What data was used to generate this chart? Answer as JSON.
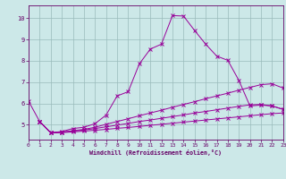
{
  "xlabel": "Windchill (Refroidissement éolien,°C)",
  "bg_color": "#cce8e8",
  "line_color": "#990099",
  "xlim": [
    0,
    23
  ],
  "ylim": [
    4.3,
    10.6
  ],
  "yticks": [
    5,
    6,
    7,
    8,
    9,
    10
  ],
  "xticks": [
    0,
    1,
    2,
    3,
    4,
    5,
    6,
    7,
    8,
    9,
    10,
    11,
    12,
    13,
    14,
    15,
    16,
    17,
    18,
    19,
    20,
    21,
    22,
    23
  ],
  "lines": [
    {
      "x": [
        0,
        1,
        2,
        3,
        4,
        5,
        6,
        7,
        8,
        9,
        10,
        11,
        12,
        13,
        14,
        15,
        16,
        17,
        18,
        19,
        20,
        21,
        22,
        23
      ],
      "y": [
        6.1,
        5.15,
        4.62,
        4.68,
        4.82,
        4.88,
        5.05,
        5.45,
        6.35,
        6.55,
        7.85,
        8.55,
        8.78,
        10.12,
        10.1,
        9.42,
        8.78,
        8.22,
        8.02,
        7.08,
        5.88,
        5.92,
        5.88,
        5.72
      ]
    },
    {
      "x": [
        1,
        2,
        3,
        4,
        5,
        6,
        7,
        8,
        9,
        10,
        11,
        12,
        13,
        14,
        15,
        16,
        17,
        18,
        19,
        20,
        21,
        22,
        23
      ],
      "y": [
        5.15,
        4.62,
        4.65,
        4.72,
        4.78,
        4.88,
        5.02,
        5.15,
        5.28,
        5.42,
        5.55,
        5.68,
        5.82,
        5.95,
        6.08,
        6.22,
        6.35,
        6.48,
        6.62,
        6.75,
        6.88,
        6.92,
        6.72
      ]
    },
    {
      "x": [
        1,
        2,
        3,
        4,
        5,
        6,
        7,
        8,
        9,
        10,
        11,
        12,
        13,
        14,
        15,
        16,
        17,
        18,
        19,
        20,
        21,
        22,
        23
      ],
      "y": [
        5.15,
        4.62,
        4.65,
        4.7,
        4.75,
        4.82,
        4.9,
        4.98,
        5.06,
        5.15,
        5.22,
        5.3,
        5.38,
        5.46,
        5.55,
        5.62,
        5.7,
        5.78,
        5.86,
        5.93,
        5.95,
        5.88,
        5.72
      ]
    },
    {
      "x": [
        1,
        2,
        3,
        4,
        5,
        6,
        7,
        8,
        9,
        10,
        11,
        12,
        13,
        14,
        15,
        16,
        17,
        18,
        19,
        20,
        21,
        22,
        23
      ],
      "y": [
        5.15,
        4.62,
        4.63,
        4.66,
        4.7,
        4.74,
        4.78,
        4.83,
        4.87,
        4.92,
        4.97,
        5.02,
        5.07,
        5.12,
        5.17,
        5.22,
        5.27,
        5.32,
        5.37,
        5.42,
        5.47,
        5.52,
        5.55
      ]
    }
  ]
}
